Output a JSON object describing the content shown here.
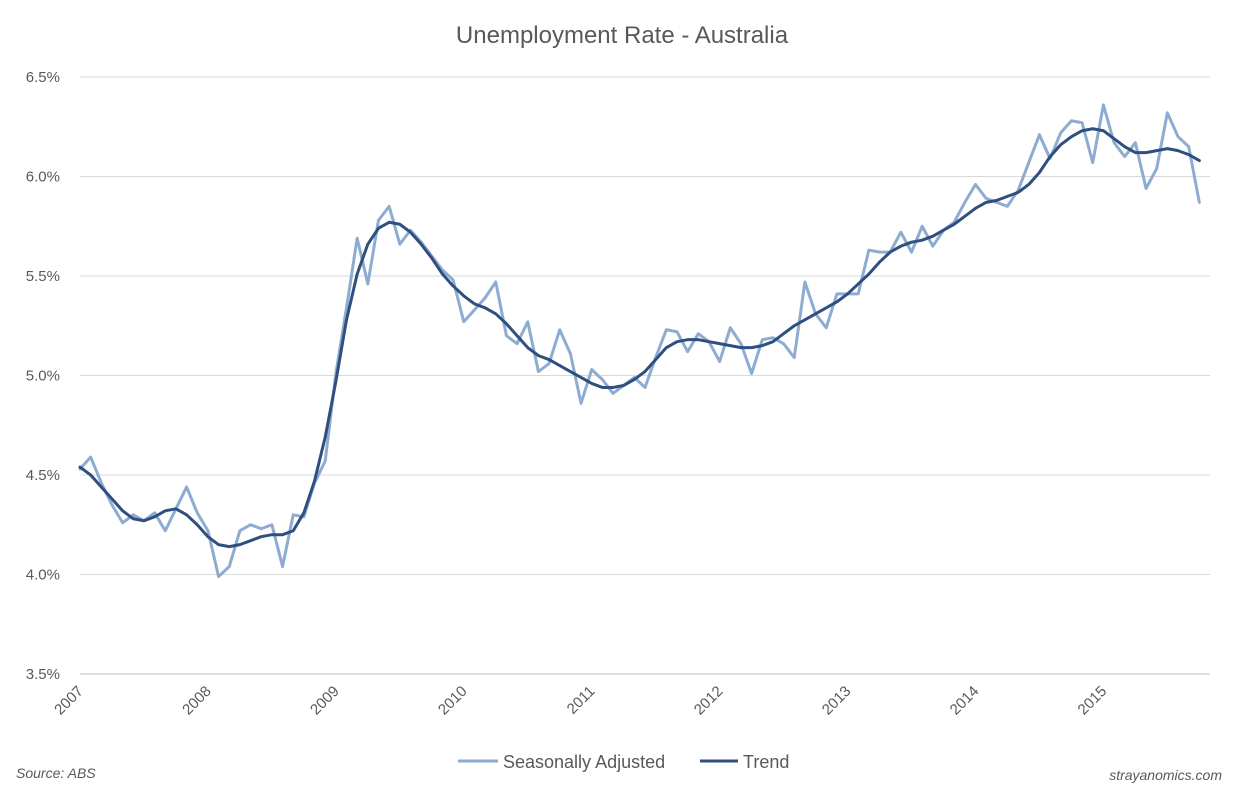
{
  "chart_data": {
    "type": "line",
    "title": "Unemployment Rate - Australia",
    "xlabel": "",
    "ylabel": "",
    "ylim": [
      3.5,
      6.5
    ],
    "y_ticks": [
      3.5,
      4.0,
      4.5,
      5.0,
      5.5,
      6.0,
      6.5
    ],
    "y_tick_labels": [
      "3.5%",
      "4.0%",
      "4.5%",
      "5.0%",
      "5.5%",
      "6.0%",
      "6.5%"
    ],
    "x_start": "2007-01",
    "x_end": "2015-11",
    "x_tick_labels": [
      "2007",
      "2008",
      "2009",
      "2010",
      "2011",
      "2012",
      "2013",
      "2014",
      "2015"
    ],
    "grid": true,
    "legend_position": "bottom",
    "series": [
      {
        "name": "Seasonally Adjusted",
        "color": "#8eacd1",
        "values": [
          4.53,
          4.59,
          4.46,
          4.35,
          4.26,
          4.3,
          4.27,
          4.31,
          4.22,
          4.33,
          4.44,
          4.31,
          4.22,
          3.99,
          4.04,
          4.22,
          4.25,
          4.23,
          4.25,
          4.04,
          4.3,
          4.29,
          4.46,
          4.57,
          5.01,
          5.34,
          5.69,
          5.46,
          5.78,
          5.85,
          5.66,
          5.73,
          5.67,
          5.6,
          5.53,
          5.48,
          5.27,
          5.33,
          5.39,
          5.47,
          5.2,
          5.16,
          5.27,
          5.02,
          5.06,
          5.23,
          5.11,
          4.86,
          5.03,
          4.98,
          4.91,
          4.95,
          4.99,
          4.94,
          5.09,
          5.23,
          5.22,
          5.12,
          5.21,
          5.17,
          5.07,
          5.24,
          5.16,
          5.01,
          5.18,
          5.19,
          5.16,
          5.09,
          5.47,
          5.31,
          5.24,
          5.41,
          5.41,
          5.41,
          5.63,
          5.62,
          5.62,
          5.72,
          5.62,
          5.75,
          5.65,
          5.73,
          5.77,
          5.87,
          5.96,
          5.89,
          5.87,
          5.85,
          5.93,
          6.07,
          6.21,
          6.09,
          6.22,
          6.28,
          6.27,
          6.07,
          6.36,
          6.17,
          6.1,
          6.17,
          5.94,
          6.04,
          6.32,
          6.2,
          6.15,
          5.87
        ]
      },
      {
        "name": "Trend",
        "color": "#2f4f7f",
        "values": [
          4.54,
          4.5,
          4.44,
          4.38,
          4.32,
          4.28,
          4.27,
          4.29,
          4.32,
          4.33,
          4.3,
          4.25,
          4.19,
          4.15,
          4.14,
          4.15,
          4.17,
          4.19,
          4.2,
          4.2,
          4.22,
          4.31,
          4.47,
          4.69,
          4.97,
          5.28,
          5.51,
          5.66,
          5.74,
          5.77,
          5.76,
          5.72,
          5.66,
          5.59,
          5.51,
          5.45,
          5.4,
          5.36,
          5.34,
          5.31,
          5.26,
          5.2,
          5.14,
          5.1,
          5.08,
          5.05,
          5.02,
          4.99,
          4.96,
          4.94,
          4.94,
          4.95,
          4.98,
          5.02,
          5.08,
          5.14,
          5.17,
          5.18,
          5.18,
          5.17,
          5.16,
          5.15,
          5.14,
          5.14,
          5.15,
          5.17,
          5.21,
          5.25,
          5.28,
          5.31,
          5.34,
          5.37,
          5.41,
          5.46,
          5.51,
          5.57,
          5.62,
          5.65,
          5.67,
          5.68,
          5.7,
          5.73,
          5.76,
          5.8,
          5.84,
          5.87,
          5.88,
          5.9,
          5.92,
          5.96,
          6.02,
          6.1,
          6.16,
          6.2,
          6.23,
          6.24,
          6.23,
          6.19,
          6.15,
          6.12,
          6.12,
          6.13,
          6.14,
          6.13,
          6.11,
          6.08
        ]
      }
    ]
  },
  "source_text": "Source: ABS",
  "site_text": "strayanomics.com"
}
